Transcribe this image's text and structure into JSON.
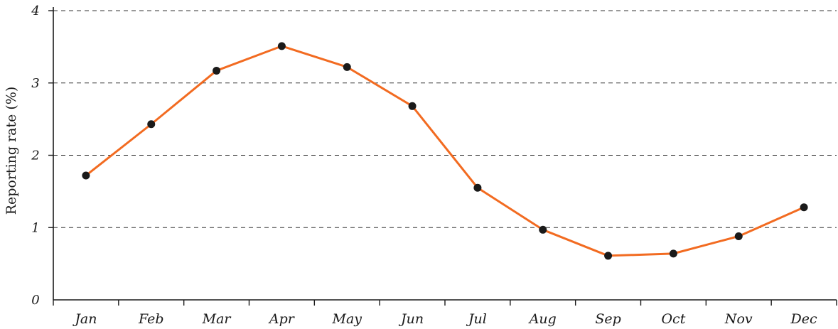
{
  "chart_data": {
    "type": "line",
    "title": "",
    "xlabel": "",
    "ylabel": "Reporting rate (%)",
    "categories": [
      "Jan",
      "Feb",
      "Mar",
      "Apr",
      "May",
      "Jun",
      "Jul",
      "Aug",
      "Sep",
      "Oct",
      "Nov",
      "Dec"
    ],
    "series": [
      {
        "values": [
          1.72,
          2.43,
          3.17,
          3.51,
          3.22,
          2.68,
          1.55,
          0.97,
          0.61,
          0.64,
          0.88,
          1.28
        ]
      }
    ],
    "yticks": [
      "0",
      "1",
      "2",
      "3",
      "4"
    ],
    "ylim": [
      0,
      4
    ],
    "grid": true,
    "grid_style": "dashed horizontal",
    "colors": {
      "line": "#f26b21",
      "marker": "#1a1a1a",
      "axis": "#1a1a1a"
    }
  }
}
